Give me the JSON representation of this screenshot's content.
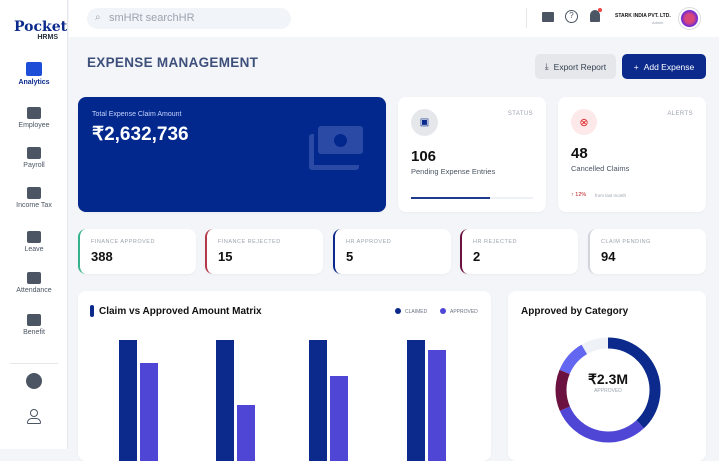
{
  "brand": {
    "logo_text": "Pocket",
    "logo_sub": "HRMS"
  },
  "search": {
    "placeholder": "smHRt searchHR"
  },
  "header": {
    "company": "STARK INDIA PVT. LTD.",
    "company_sub": "Admin"
  },
  "sidebar": {
    "items": [
      {
        "label": "Analytics",
        "icon": "chart-icon",
        "active": true
      },
      {
        "label": "Employee",
        "icon": "people-icon"
      },
      {
        "label": "Payroll",
        "icon": "wallet-icon"
      },
      {
        "label": "Income Tax",
        "icon": "bank-icon"
      },
      {
        "label": "Leave",
        "icon": "calendar-x-icon"
      },
      {
        "label": "Attendance",
        "icon": "fingerprint-icon"
      },
      {
        "label": "Benefit",
        "icon": "gift-icon"
      }
    ],
    "bottom": [
      "gear-icon",
      "user-icon"
    ]
  },
  "page": {
    "title": "EXPENSE MANAGEMENT",
    "export_label": "Export Report",
    "add_label": "Add Expense"
  },
  "total": {
    "label": "Total Expense Claim Amount",
    "value": "₹2,632,736"
  },
  "status": {
    "tag": "STATUS",
    "value": "106",
    "label": "Pending Expense Entries",
    "progress": 0.65
  },
  "alerts": {
    "tag": "ALERTS",
    "value": "48",
    "label": "Cancelled Claims",
    "change": "↑ 12%",
    "change_note": "from last month"
  },
  "stats": [
    {
      "label": "FINANCE APPROVED",
      "value": "388",
      "color": "#34b38a"
    },
    {
      "label": "FINANCE REJECTED",
      "value": "15",
      "color": "#b3394a"
    },
    {
      "label": "HR APPROVED",
      "value": "5",
      "color": "#0b2a8c"
    },
    {
      "label": "HR REJECTED",
      "value": "2",
      "color": "#6b1240"
    },
    {
      "label": "CLAIM PENDING",
      "value": "94",
      "color": "#d1d5db"
    }
  ],
  "chart_data": [
    {
      "type": "bar",
      "title": "Claim vs Approved Amount Matrix",
      "series": [
        {
          "name": "CLAIMED",
          "color": "#0b2a8c",
          "values": [
            100,
            100,
            100,
            100
          ]
        },
        {
          "name": "APPROVED",
          "color": "#4f46d6",
          "values": [
            82,
            50,
            72,
            92
          ]
        }
      ],
      "legend": "top-right"
    },
    {
      "type": "pie",
      "title": "Approved by Category",
      "center_value": "₹2.3M",
      "center_label": "APPROVED",
      "values": [
        38,
        30.5,
        12.8,
        10.3,
        8.4
      ],
      "colors": [
        "#0b2a8c",
        "#4f46d6",
        "#6b1240",
        "#6366f1",
        "#eef2f7"
      ]
    }
  ]
}
